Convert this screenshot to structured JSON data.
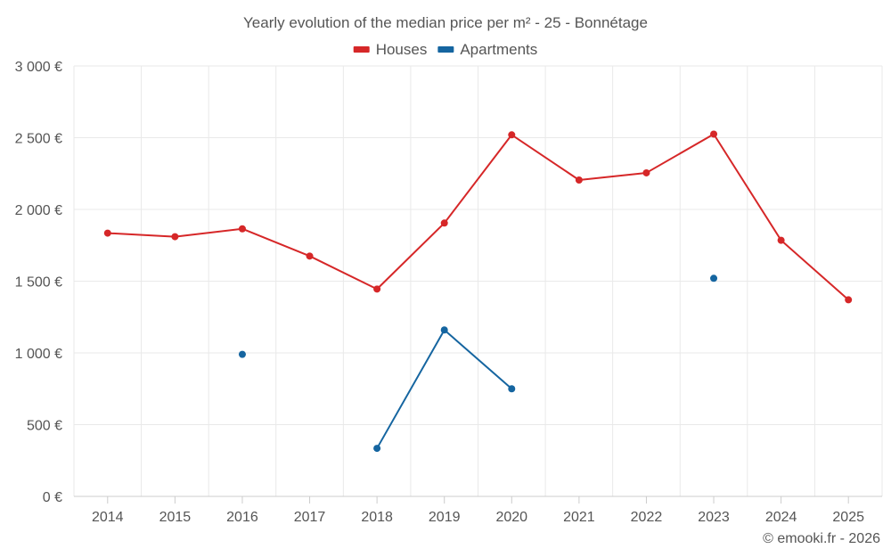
{
  "chart_data": {
    "type": "line",
    "title": "Yearly evolution of the median price per m² - 25 - Bonnétage",
    "categories": [
      "2014",
      "2015",
      "2016",
      "2017",
      "2018",
      "2019",
      "2020",
      "2021",
      "2022",
      "2023",
      "2024",
      "2025"
    ],
    "ylim": [
      0,
      3000
    ],
    "yticks": [
      0,
      500,
      1000,
      1500,
      2000,
      2500,
      3000
    ],
    "ytick_labels": [
      "0 €",
      "500 €",
      "1 000 €",
      "1 500 €",
      "2 000 €",
      "2 500 €",
      "3 000 €"
    ],
    "series": [
      {
        "name": "Houses",
        "color": "#d62728",
        "values": [
          1835,
          1810,
          1865,
          1675,
          1445,
          1905,
          2520,
          2205,
          2255,
          2525,
          1785,
          1370
        ]
      },
      {
        "name": "Apartments",
        "color": "#1565a0",
        "values": [
          null,
          null,
          990,
          null,
          335,
          1160,
          750,
          null,
          null,
          1520,
          null,
          null
        ]
      }
    ],
    "legend_position": "top-center",
    "grid": true,
    "xlabel": "",
    "ylabel": ""
  },
  "credit": "© emooki.fr - 2026"
}
